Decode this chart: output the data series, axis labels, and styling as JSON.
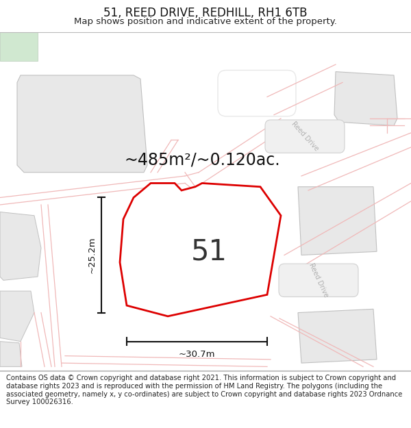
{
  "title": "51, REED DRIVE, REDHILL, RH1 6TB",
  "subtitle": "Map shows position and indicative extent of the property.",
  "area_text": "~485m²/~0.120ac.",
  "plot_number": "51",
  "dim_width": "~30.7m",
  "dim_height": "~25.2m",
  "footer": "Contains OS data © Crown copyright and database right 2021. This information is subject to Crown copyright and database rights 2023 and is reproduced with the permission of HM Land Registry. The polygons (including the associated geometry, namely x, y co-ordinates) are subject to Crown copyright and database rights 2023 Ordnance Survey 100026316.",
  "bg_color": "#ffffff",
  "map_bg": "#ffffff",
  "building_fill": "#e8e8e8",
  "building_edge": "#c0c0c0",
  "road_line_color": "#f0b8b8",
  "road_label_color": "#b0b0b0",
  "road_label_box": "#e8e8e8",
  "plot_outline_color": "#dd0000",
  "plot_fill": "#ffffff",
  "inner_rect_fill": "#e0e0e0",
  "green_fill": "#d0e8d0",
  "green_edge": "#b8ccb8",
  "white_bg": "#ffffff",
  "title_fontsize": 12,
  "subtitle_fontsize": 9.5,
  "footer_fontsize": 7.2,
  "area_fontsize": 17,
  "plot_num_fontsize": 30
}
